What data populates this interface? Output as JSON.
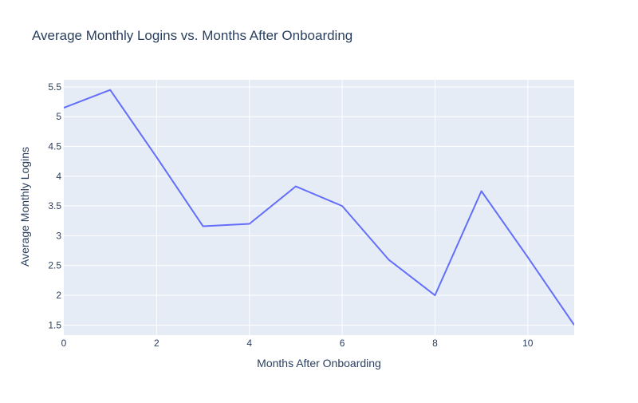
{
  "chart_data": {
    "type": "line",
    "title": "Average Monthly Logins vs. Months After Onboarding",
    "xlabel": "Months After Onboarding",
    "ylabel": "Average Monthly Logins",
    "xlim": [
      0,
      11
    ],
    "ylim": [
      1.33,
      5.62
    ],
    "x_ticks": [
      0,
      2,
      4,
      6,
      8,
      10
    ],
    "y_ticks": [
      1.5,
      2,
      2.5,
      3,
      3.5,
      4,
      4.5,
      5,
      5.5
    ],
    "x_tick_labels": [
      "0",
      "2",
      "4",
      "6",
      "8",
      "10"
    ],
    "y_tick_labels": [
      "1.5",
      "2",
      "2.5",
      "3",
      "3.5",
      "4",
      "4.5",
      "5",
      "5.5"
    ],
    "grid": true,
    "legend": "none",
    "colors": {
      "line": "#636efa",
      "plot_bg": "#e5ecf6",
      "grid": "#ffffff",
      "text": "#2a3f5f"
    },
    "series": [
      {
        "x": [
          0,
          1,
          2,
          3,
          4,
          5,
          6,
          7,
          8,
          9,
          10,
          11
        ],
        "y": [
          5.15,
          5.45,
          4.32,
          3.16,
          3.2,
          3.83,
          3.5,
          2.6,
          2.0,
          3.75,
          2.64,
          1.5
        ]
      }
    ]
  }
}
